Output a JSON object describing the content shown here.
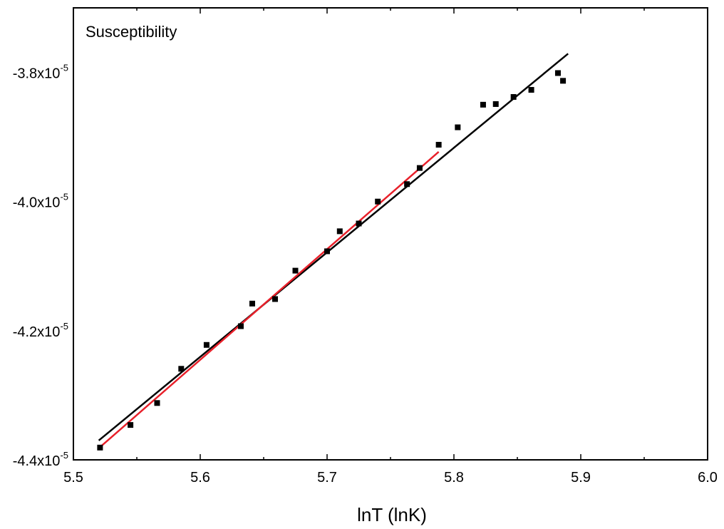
{
  "chart_data": {
    "type": "scatter",
    "title": "",
    "xlabel": "lnT (lnK)",
    "ylabel": "",
    "annotation": "Susceptibility",
    "xlim": [
      5.5,
      6.0
    ],
    "ylim": [
      -4.4e-05,
      -3.7e-05
    ],
    "x_ticks": [
      {
        "value": 5.5,
        "label": "5.5"
      },
      {
        "value": 5.6,
        "label": "5.6"
      },
      {
        "value": 5.7,
        "label": "5.7"
      },
      {
        "value": 5.8,
        "label": "5.8"
      },
      {
        "value": 5.9,
        "label": "5.9"
      },
      {
        "value": 6.0,
        "label": "6.0"
      }
    ],
    "y_ticks": [
      {
        "value": -3.8e-05,
        "mantissa": "-3.8x10",
        "exponent": "-5"
      },
      {
        "value": -4e-05,
        "mantissa": "-4.0x10",
        "exponent": "-5"
      },
      {
        "value": -4.2e-05,
        "mantissa": "-4.2x10",
        "exponent": "-5"
      },
      {
        "value": -4.4e-05,
        "mantissa": "-4.4x10",
        "exponent": "-5"
      }
    ],
    "grid": false,
    "series": [
      {
        "kind": "scatter",
        "color": "#000000",
        "points": [
          [
            5.521,
            -4.381e-05
          ],
          [
            5.545,
            -4.346e-05
          ],
          [
            5.566,
            -4.312e-05
          ],
          [
            5.585,
            -4.259e-05
          ],
          [
            5.605,
            -4.222e-05
          ],
          [
            5.632,
            -4.193e-05
          ],
          [
            5.641,
            -4.158e-05
          ],
          [
            5.659,
            -4.151e-05
          ],
          [
            5.675,
            -4.107e-05
          ],
          [
            5.7,
            -4.077e-05
          ],
          [
            5.71,
            -4.046e-05
          ],
          [
            5.725,
            -4.034e-05
          ],
          [
            5.74,
            -4e-05
          ],
          [
            5.763,
            -3.973e-05
          ],
          [
            5.773,
            -3.948e-05
          ],
          [
            5.788,
            -3.912e-05
          ],
          [
            5.803,
            -3.885e-05
          ],
          [
            5.823,
            -3.85e-05
          ],
          [
            5.833,
            -3.849e-05
          ],
          [
            5.847,
            -3.838e-05
          ],
          [
            5.861,
            -3.827e-05
          ],
          [
            5.882,
            -3.801e-05
          ],
          [
            5.886,
            -3.813e-05
          ]
        ]
      },
      {
        "kind": "line",
        "color": "#000000",
        "points": [
          [
            5.52,
            -4.37e-05
          ],
          [
            5.89,
            -3.771e-05
          ]
        ]
      },
      {
        "kind": "line",
        "color": "#e8202a",
        "points": [
          [
            5.52,
            -4.382e-05
          ],
          [
            5.788,
            -3.923e-05
          ]
        ]
      }
    ]
  }
}
